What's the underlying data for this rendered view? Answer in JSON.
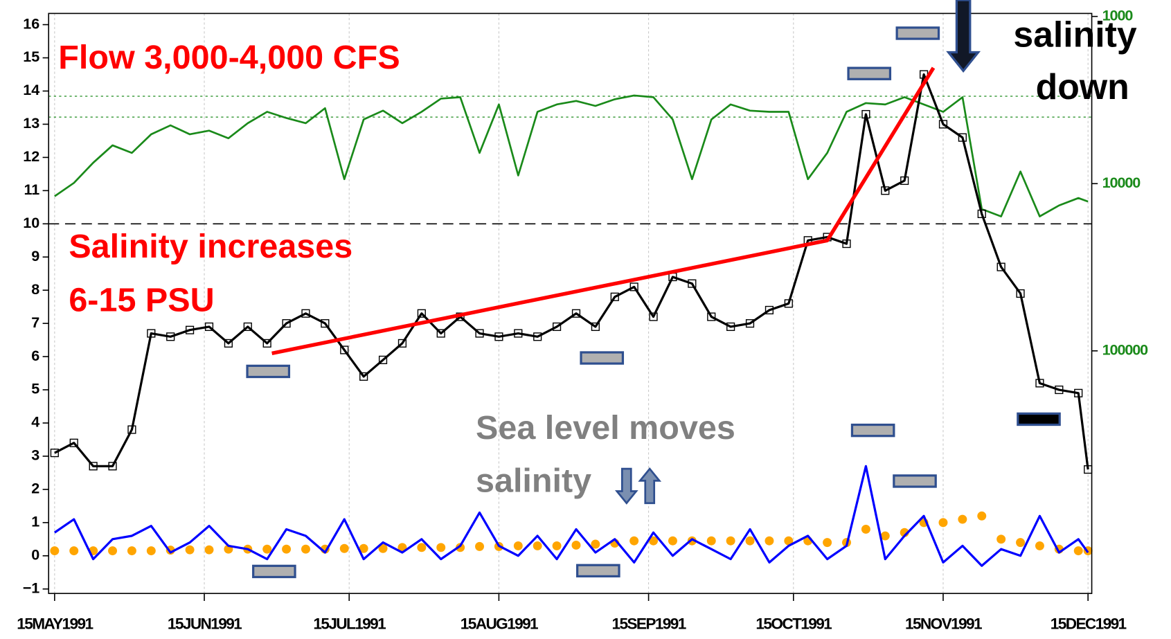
{
  "chart_data": {
    "type": "line",
    "x": [
      "1991-05-15",
      "1991-05-19",
      "1991-05-23",
      "1991-05-27",
      "1991-05-31",
      "1991-06-04",
      "1991-06-08",
      "1991-06-12",
      "1991-06-16",
      "1991-06-20",
      "1991-06-24",
      "1991-06-28",
      "1991-07-02",
      "1991-07-06",
      "1991-07-10",
      "1991-07-14",
      "1991-07-18",
      "1991-07-22",
      "1991-07-26",
      "1991-07-30",
      "1991-08-03",
      "1991-08-07",
      "1991-08-11",
      "1991-08-15",
      "1991-08-19",
      "1991-08-23",
      "1991-08-27",
      "1991-08-31",
      "1991-09-04",
      "1991-09-08",
      "1991-09-12",
      "1991-09-16",
      "1991-09-20",
      "1991-09-24",
      "1991-09-28",
      "1991-10-02",
      "1991-10-06",
      "1991-10-10",
      "1991-10-14",
      "1991-10-18",
      "1991-10-22",
      "1991-10-26",
      "1991-10-30",
      "1991-11-03",
      "1991-11-07",
      "1991-11-11",
      "1991-11-15",
      "1991-11-19",
      "1991-11-23",
      "1991-11-27",
      "1991-12-01",
      "1991-12-05",
      "1991-12-09",
      "1991-12-13",
      "1991-12-15"
    ],
    "series": [
      {
        "color": "#1a8a1a",
        "axis": "y2",
        "style": "line",
        "values": [
          11900,
          9900,
          7500,
          5900,
          6550,
          5070,
          4480,
          5070,
          4820,
          5350,
          4350,
          3720,
          4050,
          4350,
          3540,
          9400,
          4130,
          3660,
          4350,
          3720,
          3100,
          3040,
          6550,
          3360,
          8930,
          3720,
          3360,
          3200,
          3430,
          3130,
          2970,
          3040,
          4130,
          9400,
          4130,
          3360,
          3660,
          3720,
          3720,
          9400,
          6550,
          3720,
          3300,
          3360,
          3040,
          3360,
          3720,
          3040,
          14200,
          15700,
          8470,
          15700,
          13500,
          12200,
          12800
        ]
      },
      {
        "color": "#000000",
        "style": "line-square",
        "values": [
          3.1,
          3.4,
          2.7,
          2.7,
          3.8,
          6.7,
          6.6,
          6.8,
          6.9,
          6.4,
          6.9,
          6.4,
          7.0,
          7.3,
          7.0,
          6.2,
          5.4,
          5.9,
          6.4,
          7.3,
          6.7,
          7.2,
          6.7,
          6.6,
          6.7,
          6.6,
          6.9,
          7.3,
          6.9,
          7.8,
          8.1,
          7.2,
          8.4,
          8.2,
          7.2,
          6.9,
          7.0,
          7.4,
          7.6,
          9.5,
          9.6,
          9.4,
          13.3,
          11.0,
          11.3,
          14.5,
          13.0,
          12.6,
          10.3,
          8.7,
          7.9,
          5.2,
          5.0,
          4.9,
          2.6
        ]
      },
      {
        "color": "#ffa500",
        "style": "dots",
        "values": [
          0.15,
          0.15,
          0.15,
          0.15,
          0.15,
          0.15,
          0.17,
          0.18,
          0.18,
          0.2,
          0.2,
          0.2,
          0.2,
          0.2,
          0.2,
          0.22,
          0.22,
          0.22,
          0.25,
          0.25,
          0.25,
          0.25,
          0.28,
          0.28,
          0.3,
          0.3,
          0.3,
          0.32,
          0.35,
          0.38,
          0.45,
          0.45,
          0.45,
          0.45,
          0.45,
          0.45,
          0.45,
          0.45,
          0.45,
          0.45,
          0.4,
          0.4,
          0.8,
          0.6,
          0.7,
          1.0,
          1.0,
          1.1,
          1.2,
          0.5,
          0.4,
          0.3,
          0.2,
          0.15,
          0.15
        ]
      },
      {
        "color": "#0000ff",
        "style": "line",
        "values": [
          0.7,
          1.1,
          -0.1,
          0.5,
          0.6,
          0.9,
          0.1,
          0.4,
          0.9,
          0.3,
          0.2,
          -0.1,
          0.8,
          0.6,
          0.1,
          1.1,
          -0.1,
          0.4,
          0.1,
          0.5,
          -0.1,
          0.3,
          1.3,
          0.3,
          0.0,
          0.6,
          -0.1,
          0.8,
          0.1,
          0.5,
          -0.2,
          0.7,
          0.0,
          0.5,
          0.2,
          -0.1,
          0.8,
          -0.2,
          0.3,
          0.6,
          -0.1,
          0.3,
          2.7,
          -0.1,
          0.6,
          1.2,
          -0.2,
          0.3,
          -0.3,
          0.2,
          0.0,
          1.2,
          0.1,
          0.5,
          0.1
        ]
      }
    ],
    "trend": {
      "color": "#ff0000",
      "x": [
        "1991-06-29",
        "1991-10-22",
        "1991-11-13"
      ],
      "values": [
        6.1,
        9.5,
        14.7
      ]
    },
    "reference_lines": [
      {
        "axis": "y",
        "value": 10,
        "color": "#000000",
        "dash": "dashed"
      },
      {
        "axis": "y2",
        "value": 3000,
        "color": "#1a8a1a",
        "dash": "dotted"
      },
      {
        "axis": "y2",
        "value": 4000,
        "color": "#1a8a1a",
        "dash": "dotted"
      }
    ],
    "xlim": [
      "1991-05-15",
      "1991-12-15"
    ],
    "xticks": [
      {
        "value": "1991-05-15",
        "label": "15MAY1991"
      },
      {
        "value": "1991-06-15",
        "label": "15JUN1991"
      },
      {
        "value": "1991-07-15",
        "label": "15JUL1991"
      },
      {
        "value": "1991-08-15",
        "label": "15AUG1991"
      },
      {
        "value": "1991-09-15",
        "label": "15SEP1991"
      },
      {
        "value": "1991-10-15",
        "label": "15OCT1991"
      },
      {
        "value": "1991-11-15",
        "label": "15NOV1991"
      },
      {
        "value": "1991-12-15",
        "label": "15DEC1991"
      }
    ],
    "ylim": [
      -1,
      16
    ],
    "yticks": [
      {
        "value": -1,
        "label": "−1"
      },
      0,
      1,
      2,
      3,
      4,
      5,
      6,
      7,
      8,
      9,
      10,
      11,
      12,
      13,
      14,
      15,
      16
    ],
    "y2lim": [
      1000,
      100000
    ],
    "y2log": true,
    "y2inverted": true,
    "y2ticks": [
      1000,
      10000,
      100000
    ],
    "grid": true,
    "annotations": {
      "flow": "Flow  3,000-4,000 CFS",
      "salinity_1": "Salinity increases",
      "salinity_2": "6-15 PSU",
      "sea_level_1": "Sea level moves",
      "sea_level_2": "salinity",
      "down_1": "salinity",
      "down_2": "down"
    }
  }
}
